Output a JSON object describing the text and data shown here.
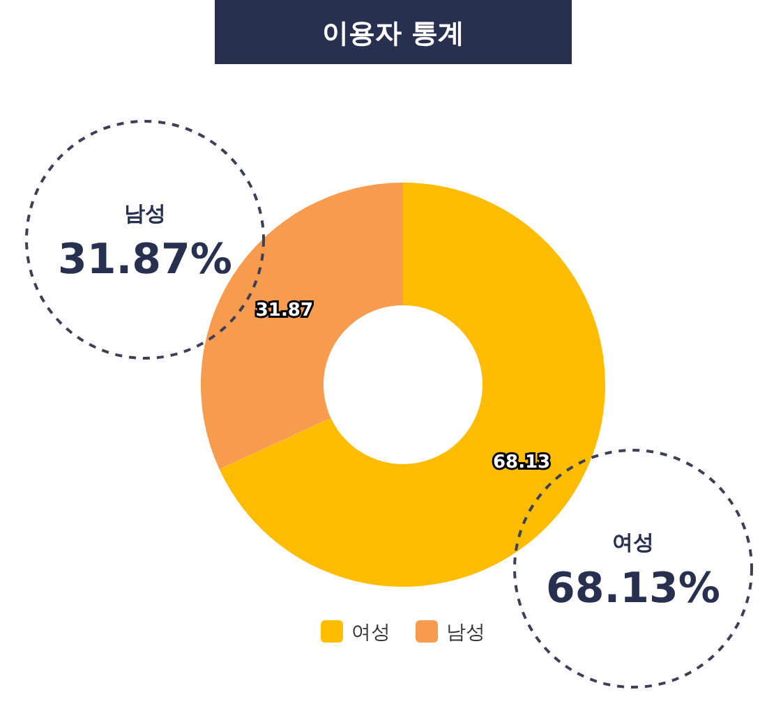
{
  "chart_data": {
    "type": "donut",
    "title": "이용자 통계",
    "categories": [
      "여성",
      "남성"
    ],
    "values": [
      68.13,
      31.87
    ],
    "colors": [
      "#ffbc00",
      "#f79b4e"
    ],
    "data_labels": true,
    "legend": "bottom",
    "annotations": [
      "남성",
      "31.87%",
      "여성",
      "68.13%"
    ]
  }
}
